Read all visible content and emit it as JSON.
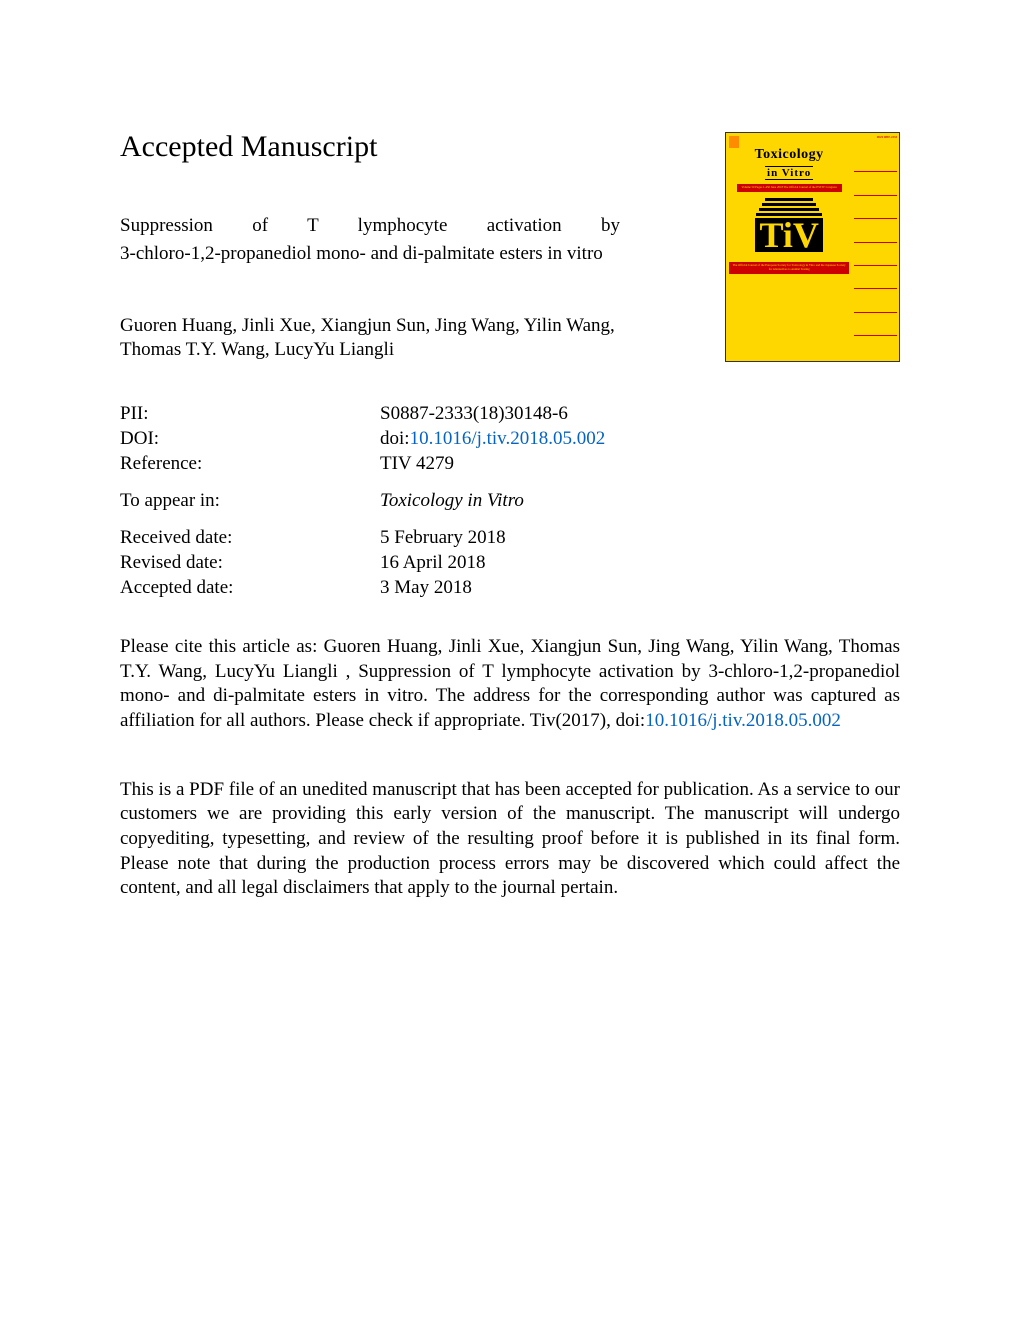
{
  "heading": "Accepted Manuscript",
  "title_line1": "Suppression of T lymphocyte activation by",
  "title_line2": "3-chloro-1,2-propanediol mono- and di-palmitate esters in vitro",
  "authors": "Guoren Huang, Jinli Xue, Xiangjun Sun, Jing Wang, Yilin Wang, Thomas T.Y. Wang, LucyYu Liangli",
  "meta": {
    "pii_label": "PII:",
    "pii_value": "S0887-2333(18)30148-6",
    "doi_label": "DOI:",
    "doi_prefix": "doi:",
    "doi_link": "10.1016/j.tiv.2018.05.002",
    "ref_label": "Reference:",
    "ref_value": "TIV 4279",
    "appear_label": "To appear in:",
    "appear_value": "Toxicology in Vitro",
    "received_label": "Received date:",
    "received_value": "5 February 2018",
    "revised_label": "Revised date:",
    "revised_value": "16 April 2018",
    "accepted_label": "Accepted date:",
    "accepted_value": "3 May 2018"
  },
  "citation_1": "Please cite this article as: Guoren Huang, Jinli Xue, Xiangjun Sun, Jing Wang, Yilin Wang, Thomas T.Y. Wang, LucyYu Liangli , Suppression of T lymphocyte activation by 3-chloro-1,2-propanediol mono- and di-palmitate esters in vitro. The address for the corresponding author was captured as affiliation for all authors. Please check if appropriate. Tiv(2017), doi:",
  "citation_link": "10.1016/j.tiv.2018.05.002",
  "disclaimer": "This is a PDF file of an unedited manuscript that has been accepted for publication. As a service to our customers we are providing this early version of the manuscript. The manuscript will undergo copyediting, typesetting, and review of the resulting proof before it is published in its final form. Please note that during the production process errors may be discovered which could affect the content, and all legal disclaimers that apply to the journal pertain.",
  "cover": {
    "journal_name_1": "Toxicology",
    "journal_name_2": "in Vitro",
    "issn_text": "ISSN 0887-2333",
    "red_box_text": "Volume 50 Pages 1-450 June 2018 The Official Journal of the ESTIV Congress",
    "guest_text": "Guest editor",
    "tiv_logo": "TiV",
    "bottom_text": "The Official Journal of the European Society for Toxicology in Vitro and the Japanese Society for Alternatives to Animal Testing",
    "sidebar_lines": [
      "Editor-in-Chief",
      "D. Dietrich",
      "Associated Editors",
      "",
      "",
      "",
      "",
      ""
    ]
  },
  "colors": {
    "text": "#000000",
    "link": "#0563c1",
    "cover_bg": "#ffd700",
    "cover_red": "#cc0000",
    "cover_black": "#000000"
  },
  "fonts": {
    "body_family": "Times New Roman",
    "heading_size_pt": 22,
    "body_size_pt": 14
  }
}
